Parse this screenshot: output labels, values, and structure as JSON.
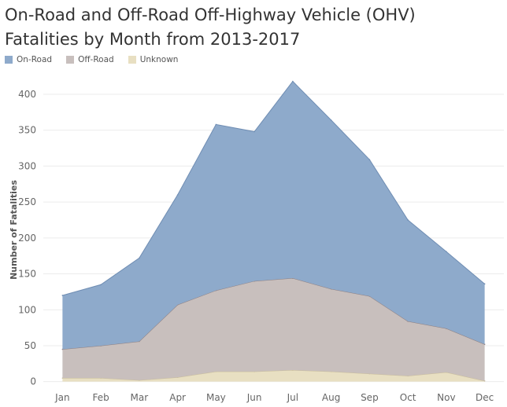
{
  "chart_data": {
    "type": "area",
    "stacked": true,
    "title": "On-Road and Off-Road Off-Highway Vehicle (OHV) Fatalities by Month from 2013-2017",
    "title_lines": [
      "On-Road and Off-Road Off-Highway Vehicle (OHV)",
      "Fatalities by Month from 2013-2017"
    ],
    "xlabel": "",
    "ylabel": "Number of Fatalities",
    "categories": [
      "Jan",
      "Feb",
      "Mar",
      "Apr",
      "May",
      "Jun",
      "Jul",
      "Aug",
      "Sep",
      "Oct",
      "Nov",
      "Dec"
    ],
    "yticks": [
      0,
      50,
      100,
      150,
      200,
      250,
      300,
      350,
      400
    ],
    "ylim": [
      -8,
      435
    ],
    "grid": true,
    "legend_position": "top-left",
    "series": [
      {
        "name": "Unknown",
        "color": "#e8dfc2",
        "values": [
          5,
          5,
          2,
          6,
          14,
          14,
          16,
          14,
          11,
          8,
          13,
          1
        ]
      },
      {
        "name": "Off-Road",
        "color": "#c8bfbd",
        "values": [
          40,
          45,
          54,
          101,
          113,
          126,
          128,
          115,
          108,
          76,
          61,
          51
        ]
      },
      {
        "name": "On-Road",
        "color": "#8eaacb",
        "values": [
          75,
          85,
          116,
          153,
          231,
          208,
          274,
          235,
          190,
          141,
          107,
          84
        ]
      }
    ],
    "totals": [
      120,
      135,
      172,
      260,
      358,
      348,
      418,
      364,
      309,
      225,
      181,
      136
    ]
  },
  "legend": [
    {
      "label": "On-Road",
      "color": "#8eaacb"
    },
    {
      "label": "Off-Road",
      "color": "#c8bfbd"
    },
    {
      "label": "Unknown",
      "color": "#e8dfc2"
    }
  ],
  "colors": {
    "on_road_line": "#6f8db3",
    "off_road_line": "#8e7f80",
    "unknown_line": "#c9bd9b",
    "grid": "#ececec"
  }
}
